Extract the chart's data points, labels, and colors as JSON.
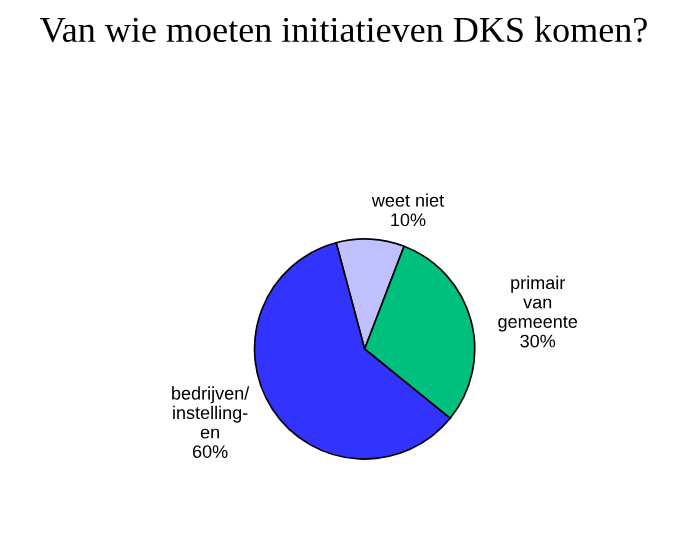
{
  "chart_data": {
    "type": "pie",
    "title": "Van wie moeten initiatieven DKS komen?",
    "categories": [
      "weet niet",
      "primair\nvan\ngemeente",
      "bedrijven/\ninstelling-\nen"
    ],
    "values": [
      10,
      30,
      60
    ],
    "value_labels": [
      "10%",
      "30%",
      "60%"
    ],
    "colors": [
      "#c0c0ff",
      "#00c080",
      "#3333ff"
    ],
    "legend": false
  }
}
